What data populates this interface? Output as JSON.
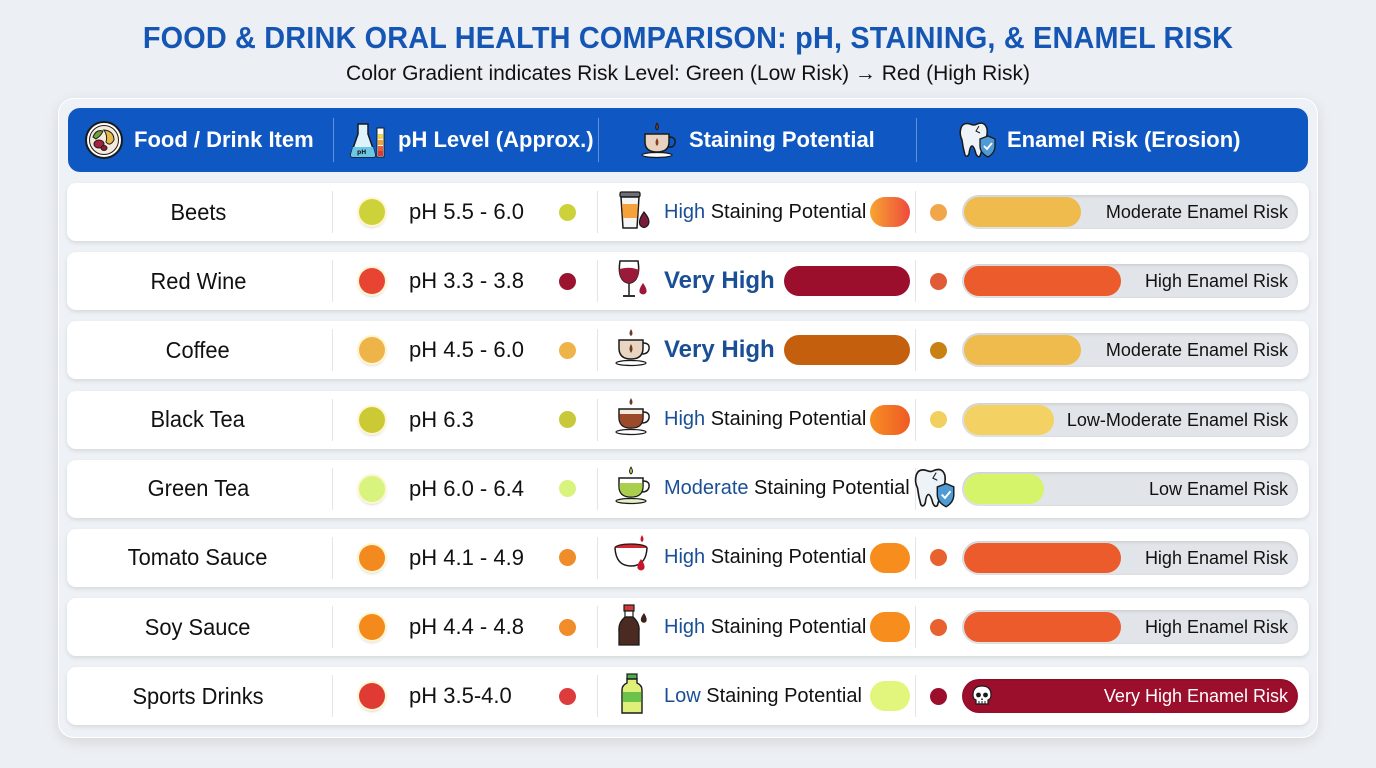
{
  "title": "FOOD & DRINK ORAL HEALTH COMPARISON: pH, STAINING, & ENAMEL RISK",
  "subtitle": "Color Gradient indicates Risk Level: Green (Low Risk) → Red (High Risk)",
  "colors": {
    "header_bg": "#0f57c2",
    "title": "#1556b5",
    "level_text": "#1a4f96"
  },
  "header": {
    "columns": [
      {
        "label": "Food / Drink Item",
        "icon": "food-plate-icon"
      },
      {
        "label": "pH Level (Approx.)",
        "icon": "ph-flask-icon"
      },
      {
        "label": "Staining Potential",
        "icon": "coffee-cup-icon"
      },
      {
        "label": "Enamel Risk (Erosion)",
        "icon": "tooth-shield-icon"
      }
    ]
  },
  "rows": [
    {
      "item": "Beets",
      "ph": "pH 5.5 - 6.0",
      "ph_color": "#cdd23a",
      "ph_dot2": "#cdd23a",
      "stain_icon": "cup-drop-icon",
      "stain_level": "High",
      "stain_suffix": " Staining Potential",
      "stain_style": "normal",
      "stain_color": "linear-gradient(90deg,#f7a531,#ee4a3d)",
      "enamel_dot": "#f2a64b",
      "enamel_fill": 0.36,
      "enamel_color": "#eebb4c",
      "enamel_label": "Moderate Enamel Risk"
    },
    {
      "item": "Red Wine",
      "ph": "pH 3.3 - 3.8",
      "ph_color": "#e84434",
      "ph_dot2": "#9a1430",
      "stain_icon": "wine-glass-icon",
      "stain_level": "Very High",
      "stain_suffix": "",
      "stain_style": "big",
      "stain_color": "#9b0e2c",
      "enamel_dot": "#e15b36",
      "enamel_fill": 0.48,
      "enamel_color": "#ec5b2b",
      "enamel_label": "High Enamel Risk"
    },
    {
      "item": "Coffee",
      "ph": "pH 4.5 - 6.0",
      "ph_color": "#eeb44a",
      "ph_dot2": "#eeb44a",
      "stain_icon": "coffee-cup-icon",
      "stain_level": "Very High",
      "stain_suffix": "",
      "stain_style": "big",
      "stain_color": "#c4600d",
      "enamel_dot": "#c98114",
      "enamel_fill": 0.36,
      "enamel_color": "#eebb4c",
      "enamel_label": "Moderate Enamel Risk"
    },
    {
      "item": "Black Tea",
      "ph": "pH 6.3",
      "ph_color": "#cbca35",
      "ph_dot2": "#c9c83a",
      "stain_icon": "tea-cup-icon",
      "stain_level": "High",
      "stain_suffix": " Staining Potential",
      "stain_style": "normal",
      "stain_color": "linear-gradient(90deg,#f78e22,#ef5a26)",
      "enamel_dot": "#f1d05f",
      "enamel_fill": 0.28,
      "enamel_color": "#f3d263",
      "enamel_label": "Low-Moderate Enamel Risk"
    },
    {
      "item": "Green Tea",
      "ph": "pH 6.0 - 6.4",
      "ph_color": "#d8f37e",
      "ph_dot2": "#d8f37e",
      "stain_icon": "green-tea-cup-icon",
      "stain_level": "Moderate",
      "stain_suffix": " Staining Potential",
      "stain_style": "normal",
      "stain_color": "",
      "enamel_dot": "",
      "enamel_fill": 0.25,
      "enamel_color": "#d5f46a",
      "enamel_label": "Low Enamel Risk"
    },
    {
      "item": "Tomato Sauce",
      "ph": "pH 4.1 - 4.9",
      "ph_color": "#f28a1f",
      "ph_dot2": "#f08c2a",
      "stain_icon": "sauce-bowl-icon",
      "stain_level": "High",
      "stain_suffix": " Staining Potential",
      "stain_style": "normal",
      "stain_color": "#f78d1c",
      "enamel_dot": "#e8622f",
      "enamel_fill": 0.48,
      "enamel_color": "#ec5b2b",
      "enamel_label": "High Enamel Risk"
    },
    {
      "item": "Soy Sauce",
      "ph": "pH 4.4 - 4.8",
      "ph_color": "#f48a1c",
      "ph_dot2": "#f08c2a",
      "stain_icon": "soy-bottle-icon",
      "stain_level": "High",
      "stain_suffix": " Staining Potential",
      "stain_style": "normal",
      "stain_color": "#f78d1c",
      "enamel_dot": "#e8622f",
      "enamel_fill": 0.48,
      "enamel_color": "#ec5b2b",
      "enamel_label": "High Enamel Risk"
    },
    {
      "item": "Sports Drinks",
      "ph": "pH 3.5-4.0",
      "ph_color": "#df3a34",
      "ph_dot2": "#de3c3c",
      "stain_icon": "sports-bottle-icon",
      "stain_level": "Low",
      "stain_suffix": " Staining Potential",
      "stain_style": "normal",
      "stain_color": "#e2f57c",
      "enamel_dot": "#9b0e2c",
      "enamel_fill": 1.0,
      "enamel_color": "#9b0e2c",
      "enamel_label": "Very High Enamel Risk"
    }
  ]
}
